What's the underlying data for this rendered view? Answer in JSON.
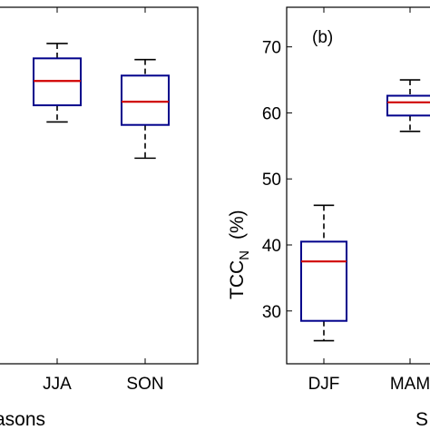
{
  "chart_data": [
    {
      "type": "box",
      "panel_label": "",
      "xlabel": "asons",
      "ylabel": "",
      "categories": [
        "JJA",
        "SON"
      ],
      "ylim": [
        16,
        76
      ],
      "boxes": [
        {
          "category": "JJA",
          "min": 56.7,
          "q1": 59.5,
          "median": 63.6,
          "q3": 67.4,
          "max": 69.9
        },
        {
          "category": "SON",
          "min": 50.6,
          "q1": 56.2,
          "median": 60.1,
          "q3": 64.5,
          "max": 67.2
        }
      ]
    },
    {
      "type": "box",
      "panel_label": "(b)",
      "xlabel": "S",
      "ylabel_main": "TCC",
      "ylabel_sub": "N",
      "ylabel_unit": "(%)",
      "categories": [
        "DJF",
        "MAM"
      ],
      "yticks": [
        30,
        40,
        50,
        60,
        70
      ],
      "ylim": [
        22,
        76
      ],
      "boxes": [
        {
          "category": "DJF",
          "min": 25.5,
          "q1": 28.5,
          "median": 37.5,
          "q3": 40.5,
          "max": 46.0
        },
        {
          "category": "MAM",
          "min": 57.2,
          "q1": 59.6,
          "median": 61.6,
          "q3": 62.6,
          "max": 65.0
        }
      ]
    }
  ]
}
